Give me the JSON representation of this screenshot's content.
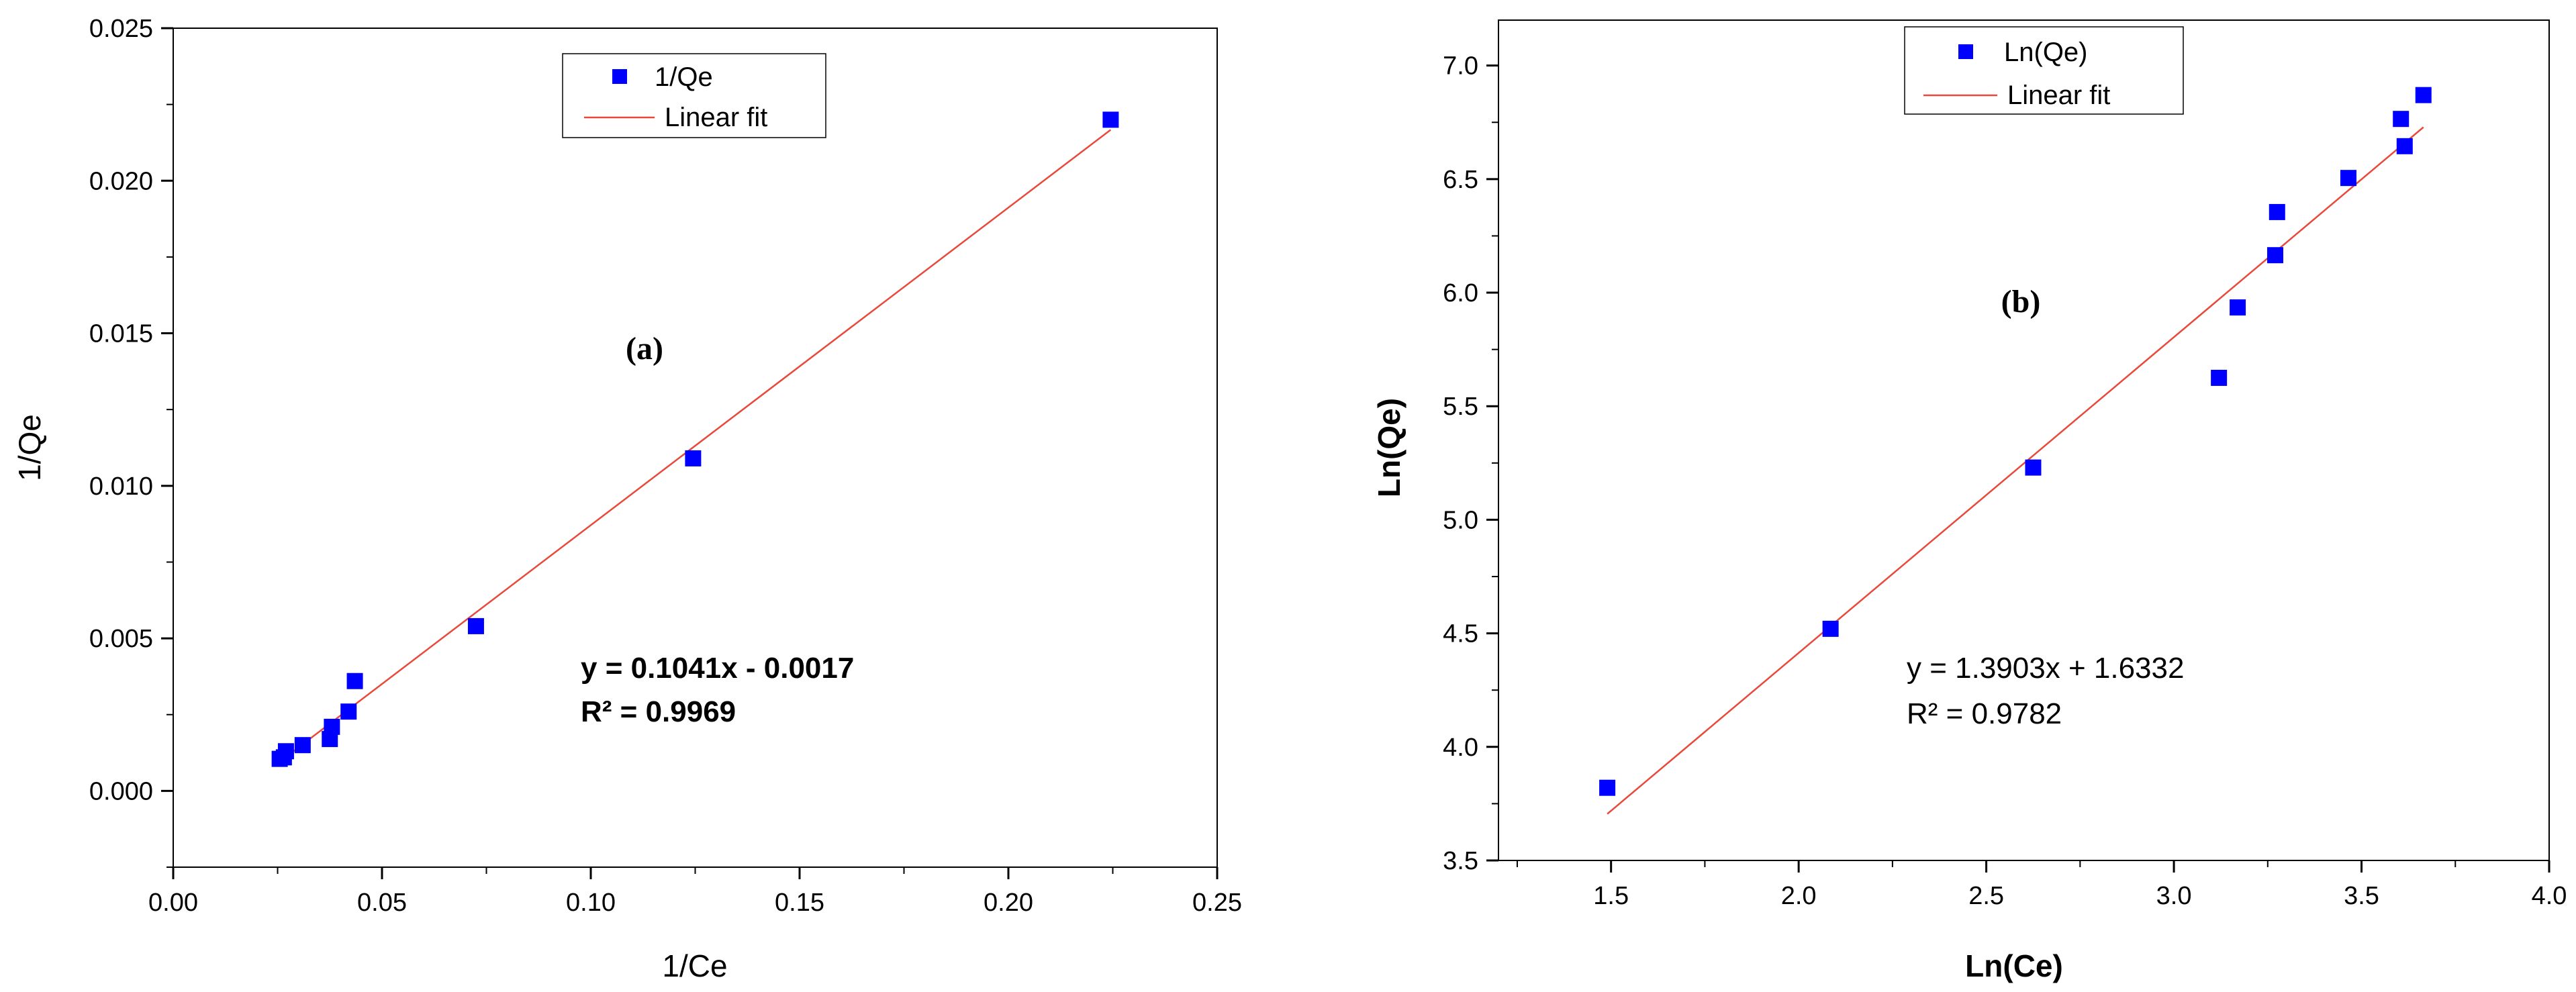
{
  "chart_data": [
    {
      "type": "scatter",
      "panel_label": "(a)",
      "xlabel": "1/Ce",
      "ylabel": "1/Qe",
      "xlim": [
        0.0,
        0.25
      ],
      "ylim": [
        -0.0025,
        0.025
      ],
      "xticks": [
        "0.00",
        "0.05",
        "0.10",
        "0.15",
        "0.20",
        "0.25"
      ],
      "yticks": [
        "0.000",
        "0.005",
        "0.010",
        "0.015",
        "0.020",
        "0.025"
      ],
      "grid": false,
      "legend": {
        "placement": "top-center",
        "entries": [
          "1/Qe",
          "Linear fit"
        ]
      },
      "series": [
        {
          "name": "1/Qe",
          "marker": "square",
          "color": "#0000ff",
          "x": [
            0.0255,
            0.0265,
            0.027,
            0.031,
            0.0375,
            0.038,
            0.042,
            0.0435,
            0.0725,
            0.1245,
            0.2245
          ],
          "y": [
            0.00105,
            0.0011,
            0.0013,
            0.0015,
            0.0017,
            0.0021,
            0.0026,
            0.0036,
            0.0054,
            0.0109,
            0.022
          ]
        }
      ],
      "fit": {
        "name": "Linear fit",
        "slope": 0.1041,
        "intercept": -0.0017,
        "x_range": [
          0.0255,
          0.2245
        ],
        "color": "#e8493a"
      },
      "annotations": {
        "equation": "y = 0.1041x - 0.0017",
        "r2": "R² = 0.9969"
      }
    },
    {
      "type": "scatter",
      "panel_label": "(b)",
      "xlabel": "Ln(Ce)",
      "ylabel": "Ln(Qe)",
      "xlim": [
        1.2,
        4.0
      ],
      "ylim": [
        3.5,
        7.2
      ],
      "xticks": [
        "1.5",
        "2.0",
        "2.5",
        "3.0",
        "3.5",
        "4.0"
      ],
      "yticks": [
        "3.5",
        "4.0",
        "4.5",
        "5.0",
        "5.5",
        "6.0",
        "6.5",
        "7.0"
      ],
      "grid": false,
      "legend": {
        "placement": "top-left",
        "entries": [
          "Ln(Qe)",
          "Linear fit"
        ]
      },
      "series": [
        {
          "name": "Ln(Qe)",
          "marker": "square",
          "color": "#0000ff",
          "x": [
            1.49,
            2.085,
            2.625,
            3.12,
            3.17,
            3.27,
            3.275,
            3.465,
            3.605,
            3.615,
            3.665
          ],
          "y": [
            3.82,
            4.52,
            5.23,
            5.625,
            5.935,
            6.165,
            6.355,
            6.505,
            6.765,
            6.645,
            6.87
          ]
        }
      ],
      "fit": {
        "name": "Linear fit",
        "slope": 1.3903,
        "intercept": 1.6332,
        "x_range": [
          1.49,
          3.665
        ],
        "color": "#e8493a"
      },
      "annotations": {
        "equation": "y = 1.3903x + 1.6332",
        "r2": "R² = 0.9782"
      }
    }
  ]
}
